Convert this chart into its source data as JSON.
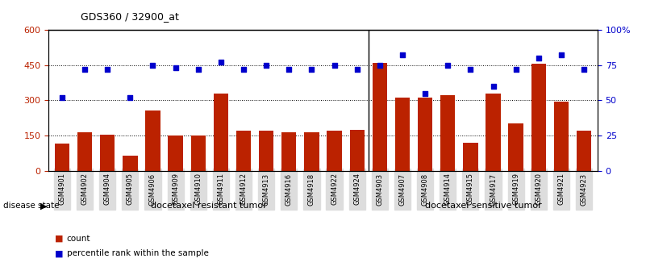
{
  "title": "GDS360 / 32900_at",
  "samples": [
    "GSM4901",
    "GSM4902",
    "GSM4904",
    "GSM4905",
    "GSM4906",
    "GSM4909",
    "GSM4910",
    "GSM4911",
    "GSM4912",
    "GSM4913",
    "GSM4916",
    "GSM4918",
    "GSM4922",
    "GSM4924",
    "GSM4903",
    "GSM4907",
    "GSM4908",
    "GSM4914",
    "GSM4915",
    "GSM4917",
    "GSM4919",
    "GSM4920",
    "GSM4921",
    "GSM4923"
  ],
  "counts": [
    115,
    165,
    155,
    65,
    255,
    150,
    150,
    330,
    170,
    170,
    165,
    165,
    170,
    175,
    460,
    310,
    310,
    320,
    120,
    330,
    200,
    455,
    295,
    170
  ],
  "percentiles": [
    52,
    72,
    72,
    52,
    75,
    73,
    72,
    77,
    72,
    75,
    72,
    72,
    75,
    72,
    75,
    82,
    55,
    75,
    72,
    60,
    72,
    80,
    82,
    72
  ],
  "group1_label": "docetaxel resistant tumor",
  "group2_label": "docetaxel sensitive tumor",
  "group1_count": 14,
  "group2_count": 10,
  "bar_color": "#bb2200",
  "dot_color": "#0000cc",
  "group1_bg": "#d8f5d8",
  "group2_bg": "#44cc44",
  "disease_state_label": "disease state",
  "ylim_left": [
    0,
    600
  ],
  "ylim_right": [
    0,
    100
  ],
  "yticks_left": [
    0,
    150,
    300,
    450,
    600
  ],
  "yticks_right": [
    0,
    25,
    50,
    75,
    100
  ],
  "legend_count_label": "count",
  "legend_pct_label": "percentile rank within the sample"
}
